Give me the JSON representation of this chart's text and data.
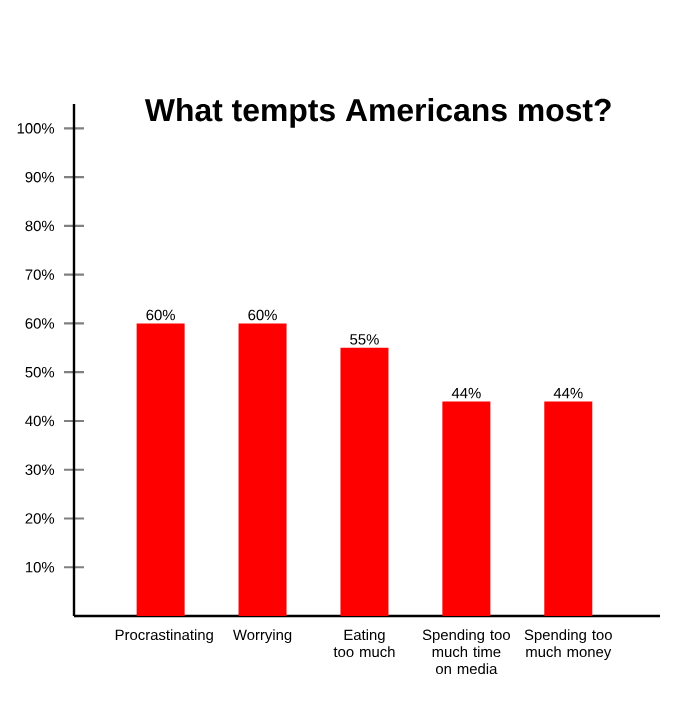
{
  "chart_data": {
    "type": "bar",
    "title": "What tempts Americans most?",
    "categories": [
      "Procrastinating",
      "Worrying",
      "Eating too much",
      "Spending too much time on media",
      "Spending too much money"
    ],
    "values": [
      60,
      60,
      55,
      44,
      44
    ],
    "value_labels": [
      "60%",
      "60%",
      "55%",
      "44%",
      "44%"
    ],
    "color": "#ff0000",
    "ylim": [
      0,
      105
    ],
    "yticks": [
      {
        "value": 10,
        "label": "10%"
      },
      {
        "value": 20,
        "label": "20%"
      },
      {
        "value": 30,
        "label": "30%"
      },
      {
        "value": 40,
        "label": "40%"
      },
      {
        "value": 50,
        "label": "50%"
      },
      {
        "value": 60,
        "label": "60%"
      },
      {
        "value": 70,
        "label": "70%"
      },
      {
        "value": 80,
        "label": "80%"
      },
      {
        "value": 90,
        "label": "90%"
      },
      {
        "value": 100,
        "label": "100%"
      }
    ]
  }
}
